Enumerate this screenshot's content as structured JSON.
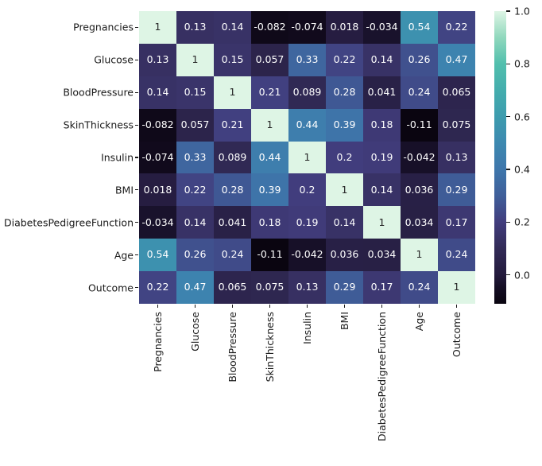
{
  "figure": {
    "background": "#ffffff",
    "tick_color": "#1a1a1a",
    "label_color": "#1a1a1a"
  },
  "chart_data": {
    "type": "heatmap",
    "title": "",
    "xlabel": "",
    "ylabel": "",
    "labels": [
      "Pregnancies",
      "Glucose",
      "BloodPressure",
      "SkinThickness",
      "Insulin",
      "BMI",
      "DiabetesPedigreeFunction",
      "Age",
      "Outcome"
    ],
    "matrix": [
      [
        1,
        0.13,
        0.14,
        -0.082,
        -0.074,
        0.018,
        -0.034,
        0.54,
        0.22
      ],
      [
        0.13,
        1,
        0.15,
        0.057,
        0.33,
        0.22,
        0.14,
        0.26,
        0.47
      ],
      [
        0.14,
        0.15,
        1,
        0.21,
        0.089,
        0.28,
        0.041,
        0.24,
        0.065
      ],
      [
        -0.082,
        0.057,
        0.21,
        1,
        0.44,
        0.39,
        0.18,
        -0.11,
        0.075
      ],
      [
        -0.074,
        0.33,
        0.089,
        0.44,
        1,
        0.2,
        0.19,
        -0.042,
        0.13
      ],
      [
        0.018,
        0.22,
        0.28,
        0.39,
        0.2,
        1,
        0.14,
        0.036,
        0.29
      ],
      [
        -0.034,
        0.14,
        0.041,
        0.18,
        0.19,
        0.14,
        1,
        0.034,
        0.17
      ],
      [
        0.54,
        0.26,
        0.24,
        -0.11,
        -0.042,
        0.036,
        0.034,
        1,
        0.24
      ],
      [
        0.22,
        0.47,
        0.065,
        0.075,
        0.13,
        0.29,
        0.17,
        0.24,
        1
      ]
    ],
    "vmin": -0.11,
    "vmax": 1.0,
    "annot": true,
    "colormap": "mako",
    "colormap_stops": [
      [
        -0.11,
        "#0a0510"
      ],
      [
        -0.05,
        "#150e24"
      ],
      [
        0.0,
        "#231a3c"
      ],
      [
        0.1,
        "#322b57"
      ],
      [
        0.2,
        "#413d7d"
      ],
      [
        0.3,
        "#3f5f9a"
      ],
      [
        0.4,
        "#3e76ab"
      ],
      [
        0.5,
        "#3d89b0"
      ],
      [
        0.6,
        "#3d9cae"
      ],
      [
        0.7,
        "#44adad"
      ],
      [
        0.8,
        "#52bfad"
      ],
      [
        0.9,
        "#90d8bd"
      ],
      [
        1.0,
        "#def5e5"
      ]
    ],
    "annot_color_light": "#ffffff",
    "annot_color_dark": "#262626",
    "colorbar": {
      "position": "right",
      "ticks": [
        {
          "label": "1.0",
          "value": 1.0
        },
        {
          "label": "0.8",
          "value": 0.8
        },
        {
          "label": "0.6",
          "value": 0.6
        },
        {
          "label": "0.4",
          "value": 0.4
        },
        {
          "label": "0.2",
          "value": 0.2
        },
        {
          "label": "0.0",
          "value": 0.0
        }
      ]
    }
  }
}
